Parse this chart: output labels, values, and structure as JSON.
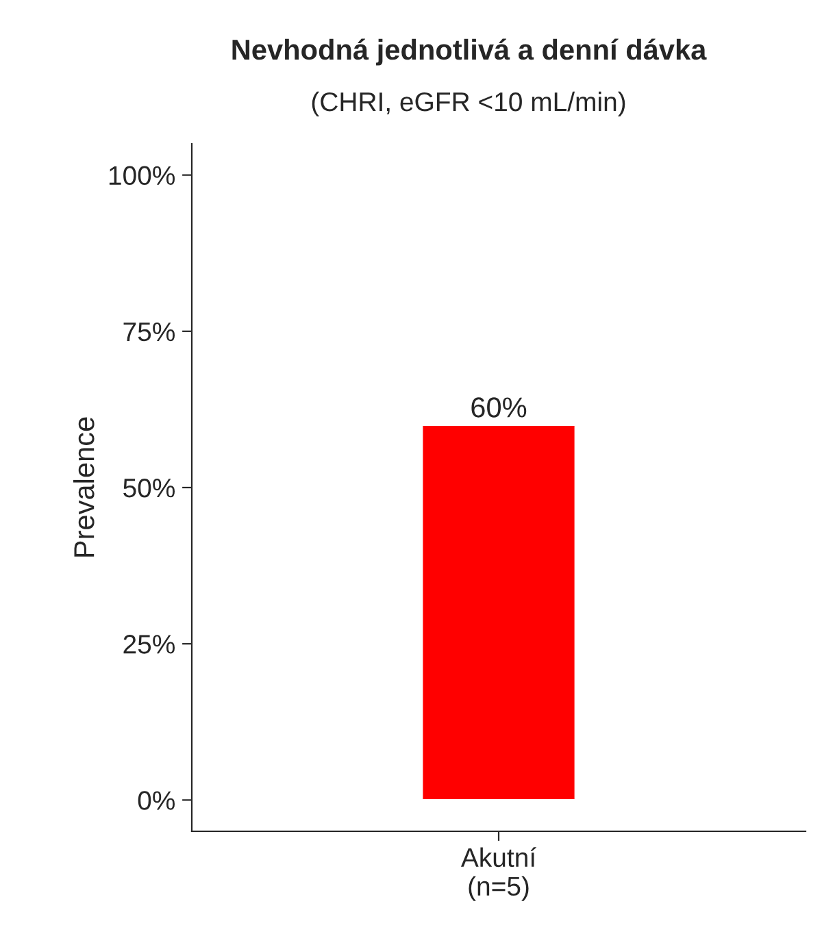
{
  "chart_data": {
    "type": "bar",
    "title": "Nevhodná jednotlivá a denní dávka",
    "subtitle": "(CHRI, eGFR <10 mL/min)",
    "ylabel": "Prevalence",
    "categories": [
      "Akutní\n(n=5)"
    ],
    "values": [
      60
    ],
    "value_labels": [
      "60%"
    ],
    "color": "#ff0000",
    "ylim": [
      -5,
      105
    ],
    "yticks": [
      {
        "value": 0,
        "label": "0%"
      },
      {
        "value": 25,
        "label": "25%"
      },
      {
        "value": 50,
        "label": "50%"
      },
      {
        "value": 75,
        "label": "75%"
      },
      {
        "value": 100,
        "label": "100%"
      }
    ],
    "grid": false,
    "legend": false
  }
}
